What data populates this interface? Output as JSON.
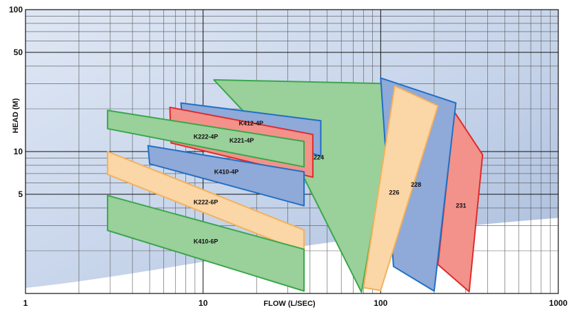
{
  "chart_data": {
    "type": "area",
    "title": "",
    "xlabel": "FLOW (L/SEC)",
    "ylabel": "HEAD (M)",
    "x_scale": "log",
    "y_scale": "log",
    "xlim": [
      1,
      1000
    ],
    "ylim": [
      1,
      100
    ],
    "grid": true,
    "legend": "none",
    "x_ticks": [
      "1",
      "10",
      "100",
      "1000"
    ],
    "y_ticks": [
      "5",
      "10",
      "50",
      "100"
    ],
    "colors": {
      "green": "#9ad09a",
      "green_edge": "#3aa64a",
      "blue": "#8fa9d8",
      "blue_edge": "#1f6fc4",
      "red": "#f2928a",
      "red_edge": "#e02a2a",
      "orange": "#fbd6a6",
      "orange_edge": "#f3b15a"
    },
    "series": [
      {
        "name": "224",
        "color": "green",
        "points": [
          [
            11.5,
            32
          ],
          [
            125,
            30
          ],
          [
            78,
            1.02
          ],
          [
            36,
            7
          ]
        ]
      },
      {
        "name": "231",
        "color": "red",
        "points": [
          [
            260,
            19
          ],
          [
            375,
            9.5
          ],
          [
            315,
            1.03
          ],
          [
            210,
            1.6
          ]
        ]
      },
      {
        "name": "228",
        "color": "blue",
        "points": [
          [
            100,
            33
          ],
          [
            265,
            22
          ],
          [
            200,
            1.04
          ],
          [
            118,
            1.55
          ]
        ]
      },
      {
        "name": "226",
        "color": "orange",
        "points": [
          [
            120,
            29
          ],
          [
            210,
            21
          ],
          [
            100,
            1.05
          ],
          [
            80,
            1.1
          ]
        ]
      },
      {
        "name": "K412-4P",
        "color": "blue",
        "points": [
          [
            7.5,
            22
          ],
          [
            46,
            16.5
          ],
          [
            46,
            9.3
          ],
          [
            7.6,
            18.5
          ]
        ]
      },
      {
        "name": "K221-4P",
        "color": "red",
        "points": [
          [
            6.5,
            20.5
          ],
          [
            41.5,
            13.2
          ],
          [
            41.5,
            6.6
          ],
          [
            6.6,
            11.5
          ]
        ]
      },
      {
        "name": "K222-4P",
        "color": "green",
        "points": [
          [
            2.9,
            19.5
          ],
          [
            37,
            11.8
          ],
          [
            37,
            7.8
          ],
          [
            2.9,
            14.5
          ]
        ]
      },
      {
        "name": "K410-4P",
        "color": "blue",
        "points": [
          [
            4.9,
            11
          ],
          [
            37,
            7.2
          ],
          [
            37,
            4.15
          ],
          [
            5,
            8.2
          ]
        ]
      },
      {
        "name": "K222-6P",
        "color": "orange",
        "points": [
          [
            2.9,
            10
          ],
          [
            37,
            2.8
          ],
          [
            37,
            1.95
          ],
          [
            2.9,
            6.9
          ]
        ]
      },
      {
        "name": "K410-6P",
        "color": "green",
        "points": [
          [
            2.9,
            4.9
          ],
          [
            37,
            2.05
          ],
          [
            37,
            1.04
          ],
          [
            2.9,
            2.78
          ]
        ]
      }
    ]
  }
}
